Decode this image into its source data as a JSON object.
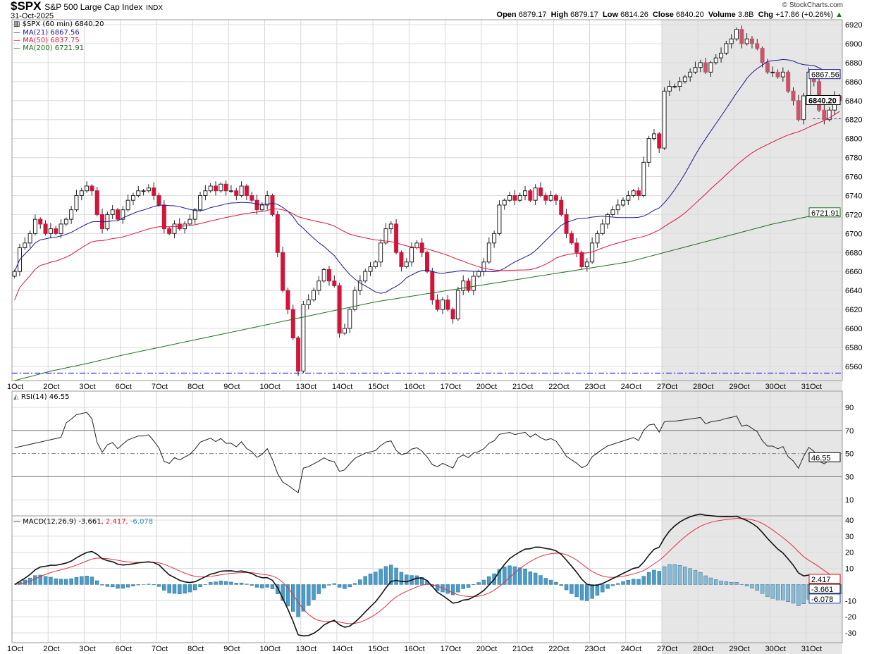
{
  "header": {
    "symbol": "$SPX",
    "name": "S&P 500 Large Cap Index",
    "exchange": "INDX",
    "date": "31-Oct-2025",
    "brand": "© StockCharts.com",
    "open_label": "Open",
    "open": "6879.17",
    "high_label": "High",
    "high": "6879.17",
    "low_label": "Low",
    "low": "6814.26",
    "close_label": "Close",
    "close": "6840.20",
    "volume_label": "Volume",
    "volume": "3.8B",
    "chg_label": "Chg",
    "chg": "+17.86 (+0.26%)"
  },
  "legend": {
    "price": "$SPX (60 min) 6840.20",
    "ma21": "MA(21) 6867.56",
    "ma50": "MA(50) 6837.75",
    "ma200": "MA(200) 6721.91",
    "rsi": "RSI(14) 46.55",
    "macd": "MACD(12,26,9) -3.661,",
    "macd_signal": "2.417,",
    "macd_hist": "-6.078"
  },
  "colors": {
    "ma21": "#1a1a8c",
    "ma50": "#dc143c",
    "ma200": "#1e6e1e",
    "down": "#d2143a",
    "hist": "#4b9cc8",
    "shade": "#e6e6e6",
    "support": "#0000ff"
  },
  "chart_data": {
    "type": "candlestick",
    "title": "$SPX (60 min)",
    "dates": [
      "1Oct",
      "2Oct",
      "3Oct",
      "6Oct",
      "7Oct",
      "8Oct",
      "9Oct",
      "10Oct",
      "13Oct",
      "14Oct",
      "15Oct",
      "16Oct",
      "17Oct",
      "20Oct",
      "21Oct",
      "22Oct",
      "23Oct",
      "24Oct",
      "27Oct",
      "28Oct",
      "29Oct",
      "30Oct",
      "31Oct"
    ],
    "hourly_closes": [
      [
        6660,
        6685,
        6690,
        6700,
        6715,
        6710,
        6700
      ],
      [
        6705,
        6700,
        6710,
        6715,
        6725,
        6740,
        6745
      ],
      [
        6750,
        6745,
        6720,
        6705,
        6720,
        6725,
        6715
      ],
      [
        6725,
        6735,
        6740,
        6745,
        6745,
        6748,
        6740
      ],
      [
        6730,
        6705,
        6700,
        6710,
        6705,
        6710,
        6715
      ],
      [
        6725,
        6740,
        6745,
        6750,
        6745,
        6752,
        6745
      ],
      [
        6745,
        6740,
        6750,
        6740,
        6735,
        6725,
        6730
      ],
      [
        6740,
        6720,
        6680,
        6640,
        6620,
        6590,
        6555
      ],
      [
        6625,
        6630,
        6640,
        6650,
        6662,
        6650,
        6645
      ],
      [
        6595,
        6600,
        6620,
        6640,
        6650,
        6660,
        6665
      ],
      [
        6670,
        6690,
        6705,
        6710,
        6680,
        6665,
        6670
      ],
      [
        6685,
        6690,
        6680,
        6660,
        6630,
        6620,
        6630
      ],
      [
        6620,
        6610,
        6640,
        6650,
        6640,
        6655,
        6660
      ],
      [
        6670,
        6690,
        6700,
        6730,
        6735,
        6740,
        6735
      ],
      [
        6740,
        6745,
        6735,
        6748,
        6740,
        6735,
        6740
      ],
      [
        6735,
        6720,
        6700,
        6690,
        6680,
        6665,
        6670
      ],
      [
        6690,
        6700,
        6710,
        6720,
        6725,
        6730,
        6735
      ],
      [
        6740,
        6745,
        6740,
        6775,
        6800,
        6805,
        6790
      ],
      [
        6850,
        6855,
        6855,
        6860,
        6865,
        6870,
        6875
      ],
      [
        6880,
        6870,
        6880,
        6885,
        6890,
        6900,
        6905
      ],
      [
        6915,
        6900,
        6905,
        6900,
        6895,
        6880,
        6870
      ],
      [
        6870,
        6865,
        6870,
        6850,
        6840,
        6820,
        6845
      ],
      [
        6870,
        6860,
        6830,
        6820,
        6830,
        6845,
        6840
      ]
    ],
    "ma200_daily": [
      6545,
      6555,
      6563,
      6572,
      6580,
      6588,
      6596,
      6604,
      6612,
      6620,
      6628,
      6634,
      6640,
      6646,
      6652,
      6658,
      6664,
      6670,
      6680,
      6690,
      6700,
      6710,
      6718
    ],
    "price_ylim": [
      6545,
      6925
    ],
    "price_ticks": [
      6560,
      6580,
      6600,
      6620,
      6640,
      6660,
      6680,
      6700,
      6720,
      6740,
      6760,
      6780,
      6800,
      6820,
      6840,
      6860,
      6880,
      6900,
      6920
    ],
    "support_level": 6553,
    "last_close": "6840.20",
    "ma21_last": "6867.56",
    "ma200_last": "6721.91",
    "rsi": {
      "ticks": [
        10,
        30,
        50,
        70,
        90
      ],
      "overbought": 70,
      "oversold": 30,
      "last": "46.55"
    },
    "macd": {
      "ticks": [
        -30,
        -20,
        -10,
        10,
        20,
        30,
        40
      ],
      "tick_labels": [
        "-30",
        "-20",
        "-10",
        "10",
        "20",
        "30",
        "40"
      ],
      "last": "-3.661",
      "signal_last": "2.417",
      "hist_last": "-6.078"
    }
  }
}
